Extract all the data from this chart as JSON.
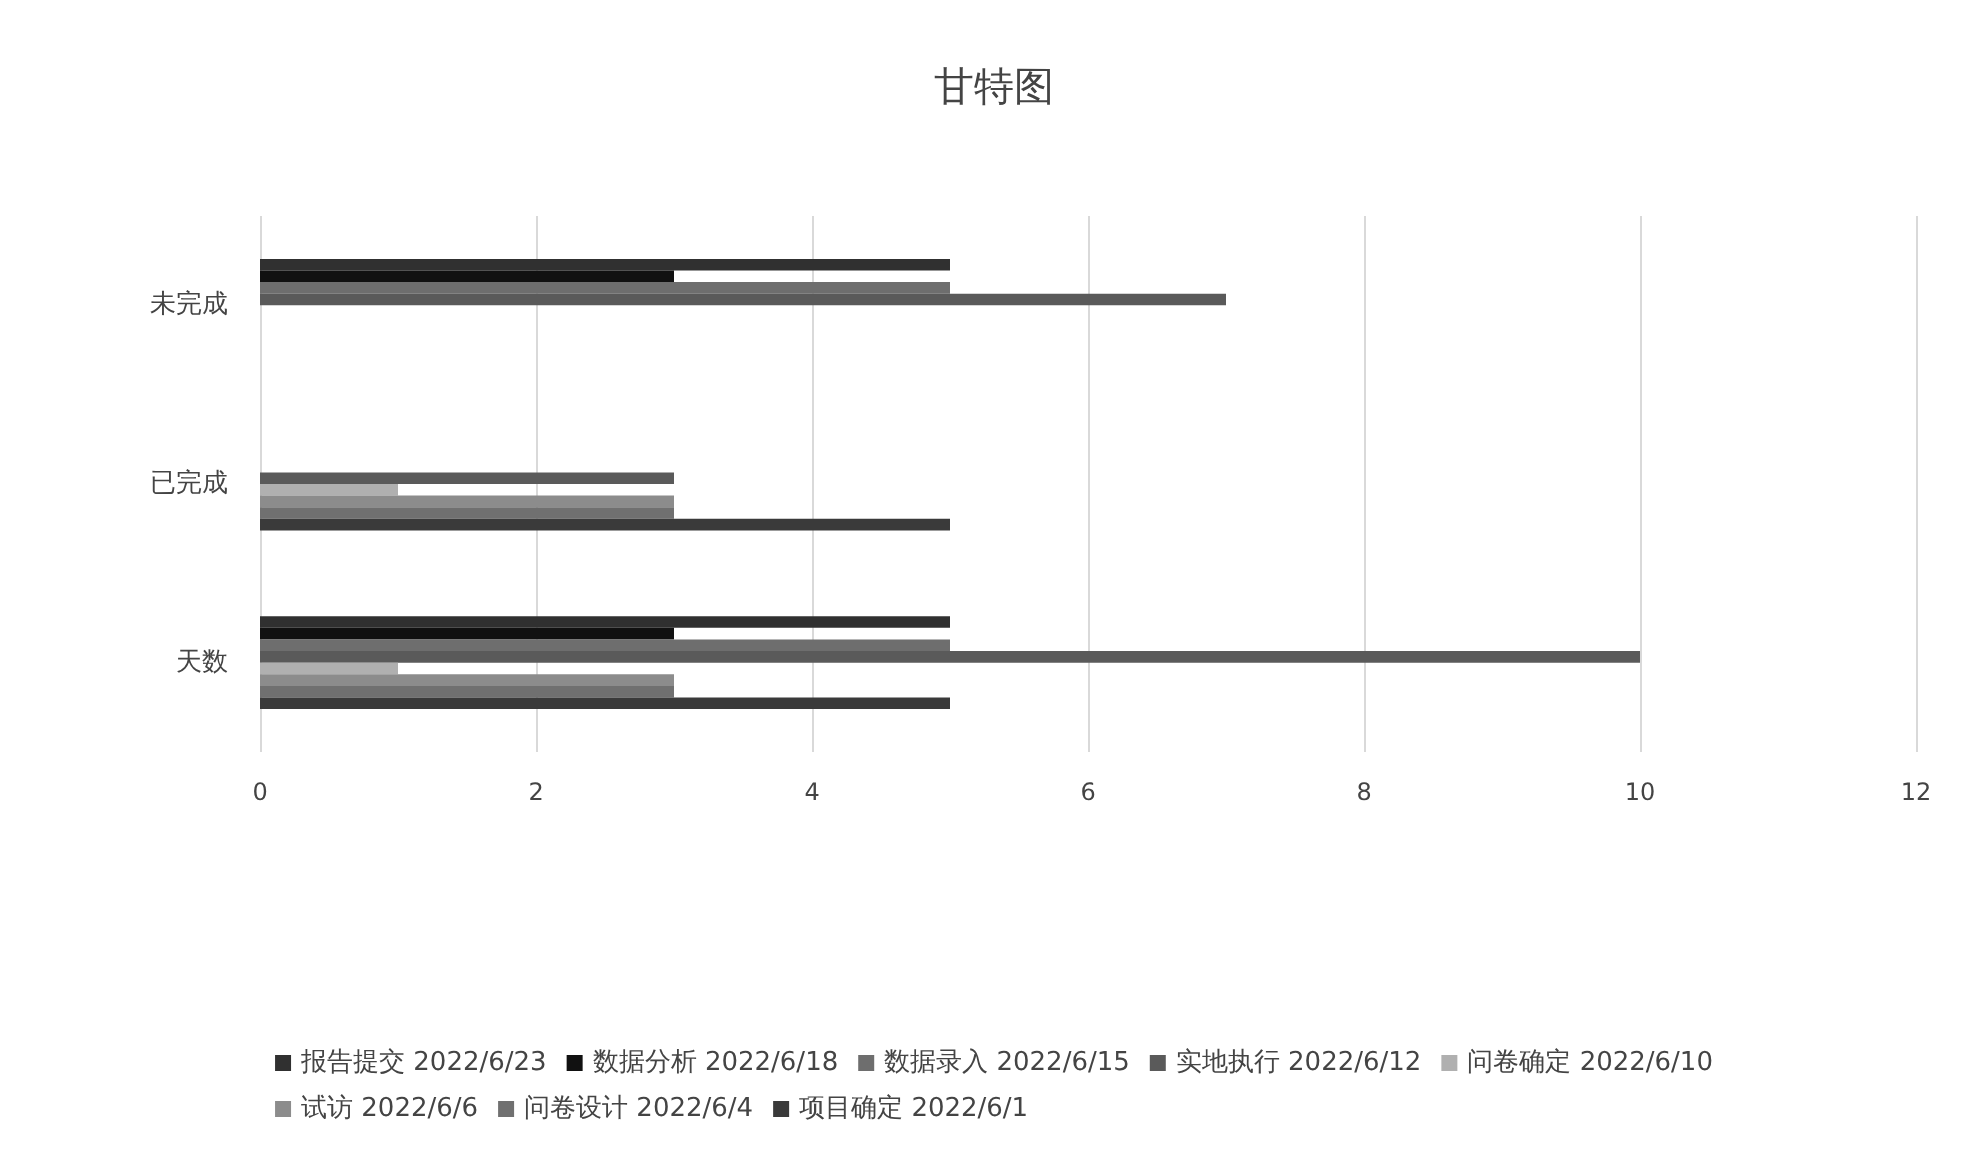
{
  "chart_data": {
    "type": "bar",
    "orientation": "horizontal",
    "title": "甘特图",
    "categories": [
      "未完成",
      "已完成",
      "天数"
    ],
    "series": [
      {
        "name": "报告提交 2022/6/23",
        "color": "#303030",
        "values": [
          5,
          null,
          5
        ]
      },
      {
        "name": "数据分析 2022/6/18",
        "color": "#111111",
        "values": [
          3,
          null,
          3
        ]
      },
      {
        "name": "数据录入 2022/6/15",
        "color": "#6e6e6e",
        "values": [
          5,
          null,
          5
        ]
      },
      {
        "name": "实地执行 2022/6/12",
        "color": "#5a5a5a",
        "values": [
          7,
          3,
          10
        ]
      },
      {
        "name": "问卷确定 2022/6/10",
        "color": "#b0b0b0",
        "values": [
          null,
          1,
          1
        ]
      },
      {
        "name": "试访 2022/6/6",
        "color": "#8c8c8c",
        "values": [
          null,
          3,
          3
        ]
      },
      {
        "name": "问卷设计 2022/6/4",
        "color": "#707070",
        "values": [
          null,
          3,
          3
        ]
      },
      {
        "name": "项目确定 2022/6/1",
        "color": "#3a3a3a",
        "values": [
          null,
          5,
          5
        ]
      }
    ],
    "xlim": [
      0,
      12
    ],
    "xticks": [
      0,
      2,
      4,
      6,
      8,
      10,
      12
    ],
    "grid": "x",
    "legend": "bottom"
  }
}
